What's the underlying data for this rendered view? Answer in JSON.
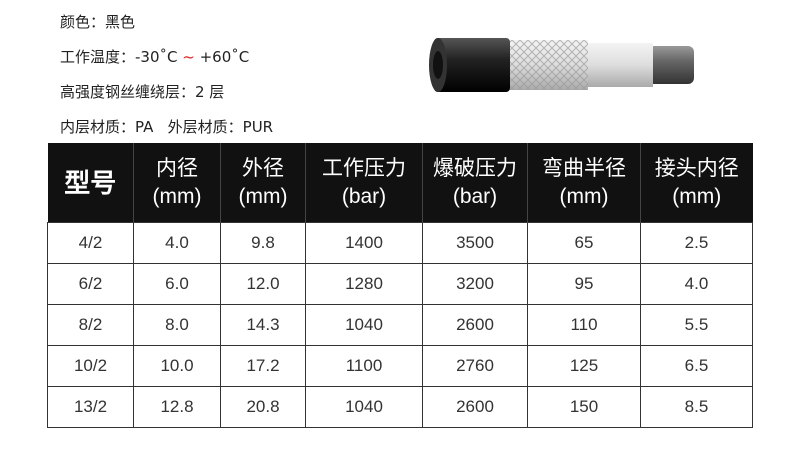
{
  "specs": {
    "color": "颜色：黑色",
    "temp_label": "工作温度：-30˚C ",
    "temp_sep": "~",
    "temp_max": " +60˚C",
    "steel_layers": "高强度钢丝缠绕层：2 层",
    "materials": "内层材质：PA   外层材质：PUR"
  },
  "accent_color": "#d22222",
  "image": {
    "icon": "hose-product-image"
  },
  "table": {
    "headers": [
      {
        "name": "型号",
        "unit": ""
      },
      {
        "name": "内径",
        "unit": "(mm)"
      },
      {
        "name": "外径",
        "unit": "(mm)"
      },
      {
        "name": "工作压力",
        "unit": "(bar)"
      },
      {
        "name": "爆破压力",
        "unit": "(bar)"
      },
      {
        "name": "弯曲半径",
        "unit": "(mm)"
      },
      {
        "name": "接头内径",
        "unit": "(mm)"
      }
    ],
    "rows": [
      [
        "4/2",
        "4.0",
        "9.8",
        "1400",
        "3500",
        "65",
        "2.5"
      ],
      [
        "6/2",
        "6.0",
        "12.0",
        "1280",
        "3200",
        "95",
        "4.0"
      ],
      [
        "8/2",
        "8.0",
        "14.3",
        "1040",
        "2600",
        "110",
        "5.5"
      ],
      [
        "10/2",
        "10.0",
        "17.2",
        "1100",
        "2760",
        "125",
        "6.5"
      ],
      [
        "13/2",
        "12.8",
        "20.8",
        "1040",
        "2600",
        "150",
        "8.5"
      ]
    ]
  }
}
